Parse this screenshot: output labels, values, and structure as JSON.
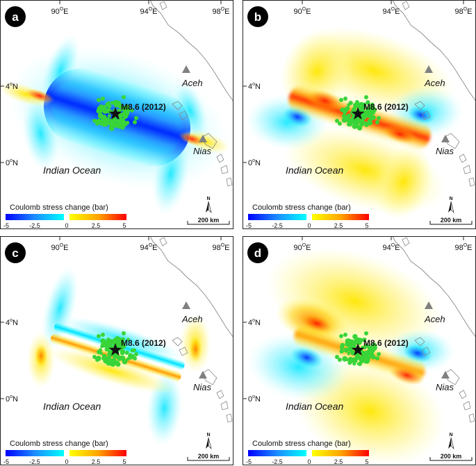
{
  "figure": {
    "lon_labels": [
      {
        "deg": "90",
        "sup": "O",
        "hemi": "E"
      },
      {
        "deg": "94",
        "sup": "O",
        "hemi": "E"
      },
      {
        "deg": "98",
        "sup": "O",
        "hemi": "E"
      }
    ],
    "lat_labels": [
      {
        "deg": "4",
        "sup": "o",
        "hemi": "N"
      },
      {
        "deg": "0",
        "sup": "o",
        "hemi": "N"
      }
    ],
    "places": {
      "aceh": "Aceh",
      "nias": "Nias",
      "ocean": "Indian Ocean",
      "event": "M8.6 (2012)"
    },
    "colorbar": {
      "title": "Coulomb stress change (bar)",
      "ticks": [
        "-5",
        "-2.5",
        "0",
        "2.5",
        "5"
      ],
      "colors": [
        "#0000ff",
        "#1c8cff",
        "#00ffff",
        "#ffffff",
        "#ffff00",
        "#ffa500",
        "#ff0000"
      ]
    },
    "scalebar": {
      "label": "200 km"
    },
    "north_label": "N",
    "colors": {
      "aftershock": "#38d438",
      "epicenter": "#111111",
      "volcano": "#808080",
      "coast": "#888888"
    },
    "panels": [
      {
        "letter": "a",
        "pattern": "strong-lobes"
      },
      {
        "letter": "b",
        "pattern": "positive-band"
      },
      {
        "letter": "c",
        "pattern": "narrow-band"
      },
      {
        "letter": "d",
        "pattern": "diffuse-positive"
      }
    ]
  }
}
